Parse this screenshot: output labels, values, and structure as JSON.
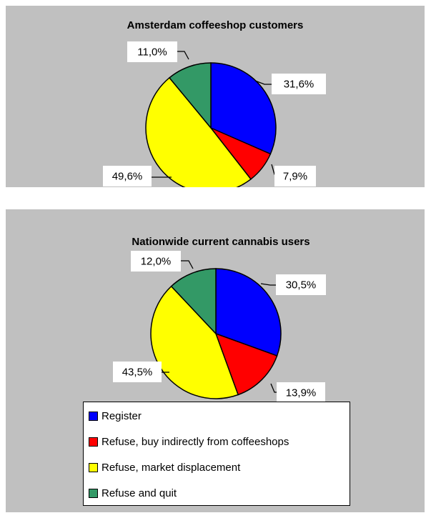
{
  "colors": {
    "register": "#0000ff",
    "refuse_indirect": "#ff0000",
    "refuse_displacement": "#ffff00",
    "refuse_quit": "#339966"
  },
  "legend": {
    "placement": "bottom",
    "entries": [
      {
        "label": "Register",
        "color": "#0000ff"
      },
      {
        "label": "Refuse, buy indirectly from coffeeshops",
        "color": "#ff0000"
      },
      {
        "label": "Refuse, market displacement",
        "color": "#ffff00"
      },
      {
        "label": "Refuse and quit",
        "color": "#339966"
      }
    ]
  },
  "chart_data": [
    {
      "type": "pie",
      "title": "Amsterdam coffeeshop customers",
      "categories": [
        "Register",
        "Refuse, buy indirectly from coffeeshops",
        "Refuse, market displacement",
        "Refuse and quit"
      ],
      "values": [
        31.6,
        7.9,
        49.6,
        11.0
      ],
      "labels": [
        "31,6%",
        "7,9%",
        "49,6%",
        "11,0%"
      ],
      "colors": [
        "#0000ff",
        "#ff0000",
        "#ffff00",
        "#339966"
      ]
    },
    {
      "type": "pie",
      "title": "Nationwide current cannabis users",
      "categories": [
        "Register",
        "Refuse, buy indirectly from coffeeshops",
        "Refuse, market displacement",
        "Refuse and quit"
      ],
      "values": [
        30.5,
        13.9,
        43.5,
        12.0
      ],
      "labels": [
        "30,5%",
        "13,9%",
        "43,5%",
        "12,0%"
      ],
      "colors": [
        "#0000ff",
        "#ff0000",
        "#ffff00",
        "#339966"
      ]
    }
  ]
}
